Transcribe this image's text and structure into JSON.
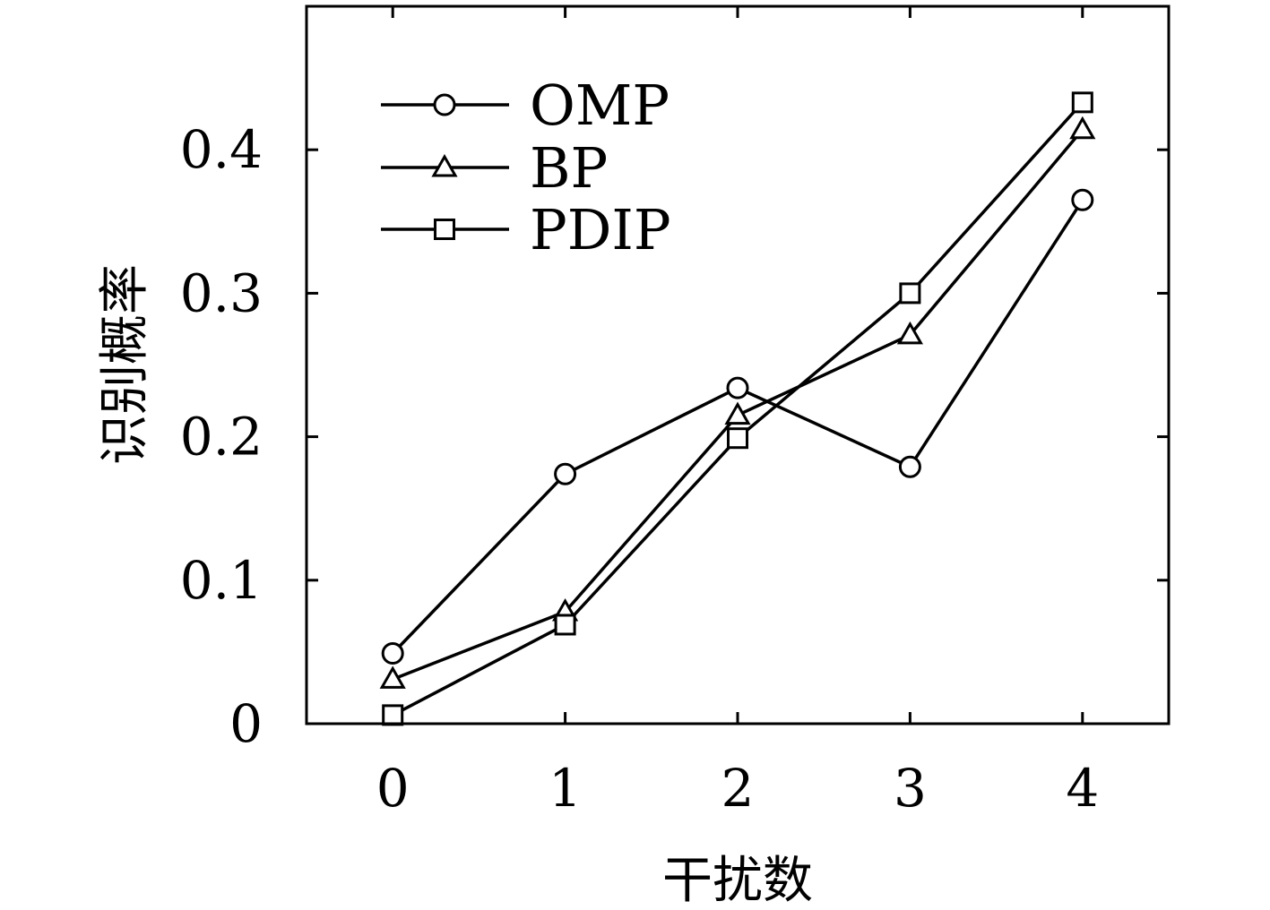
{
  "chart_data": {
    "type": "line",
    "xlabel": "干扰数",
    "ylabel": "识别概率",
    "x": [
      0,
      1,
      2,
      3,
      4
    ],
    "xlim": [
      -0.5,
      4.5
    ],
    "ylim": [
      0,
      0.5
    ],
    "x_ticks": [
      "0",
      "1",
      "2",
      "3",
      "4"
    ],
    "y_ticks": [
      "0",
      "0.1",
      "0.2",
      "0.3",
      "0.4"
    ],
    "grid": false,
    "legend_position": "top-left",
    "series": [
      {
        "name": "OMP",
        "marker": "circle",
        "color": "#000000",
        "values": [
          0.049,
          0.174,
          0.234,
          0.179,
          0.365
        ]
      },
      {
        "name": "BP",
        "marker": "triangle",
        "color": "#000000",
        "values": [
          0.031,
          0.078,
          0.215,
          0.271,
          0.414
        ]
      },
      {
        "name": "PDIP",
        "marker": "square",
        "color": "#000000",
        "values": [
          0.006,
          0.069,
          0.199,
          0.3,
          0.433
        ]
      }
    ]
  }
}
